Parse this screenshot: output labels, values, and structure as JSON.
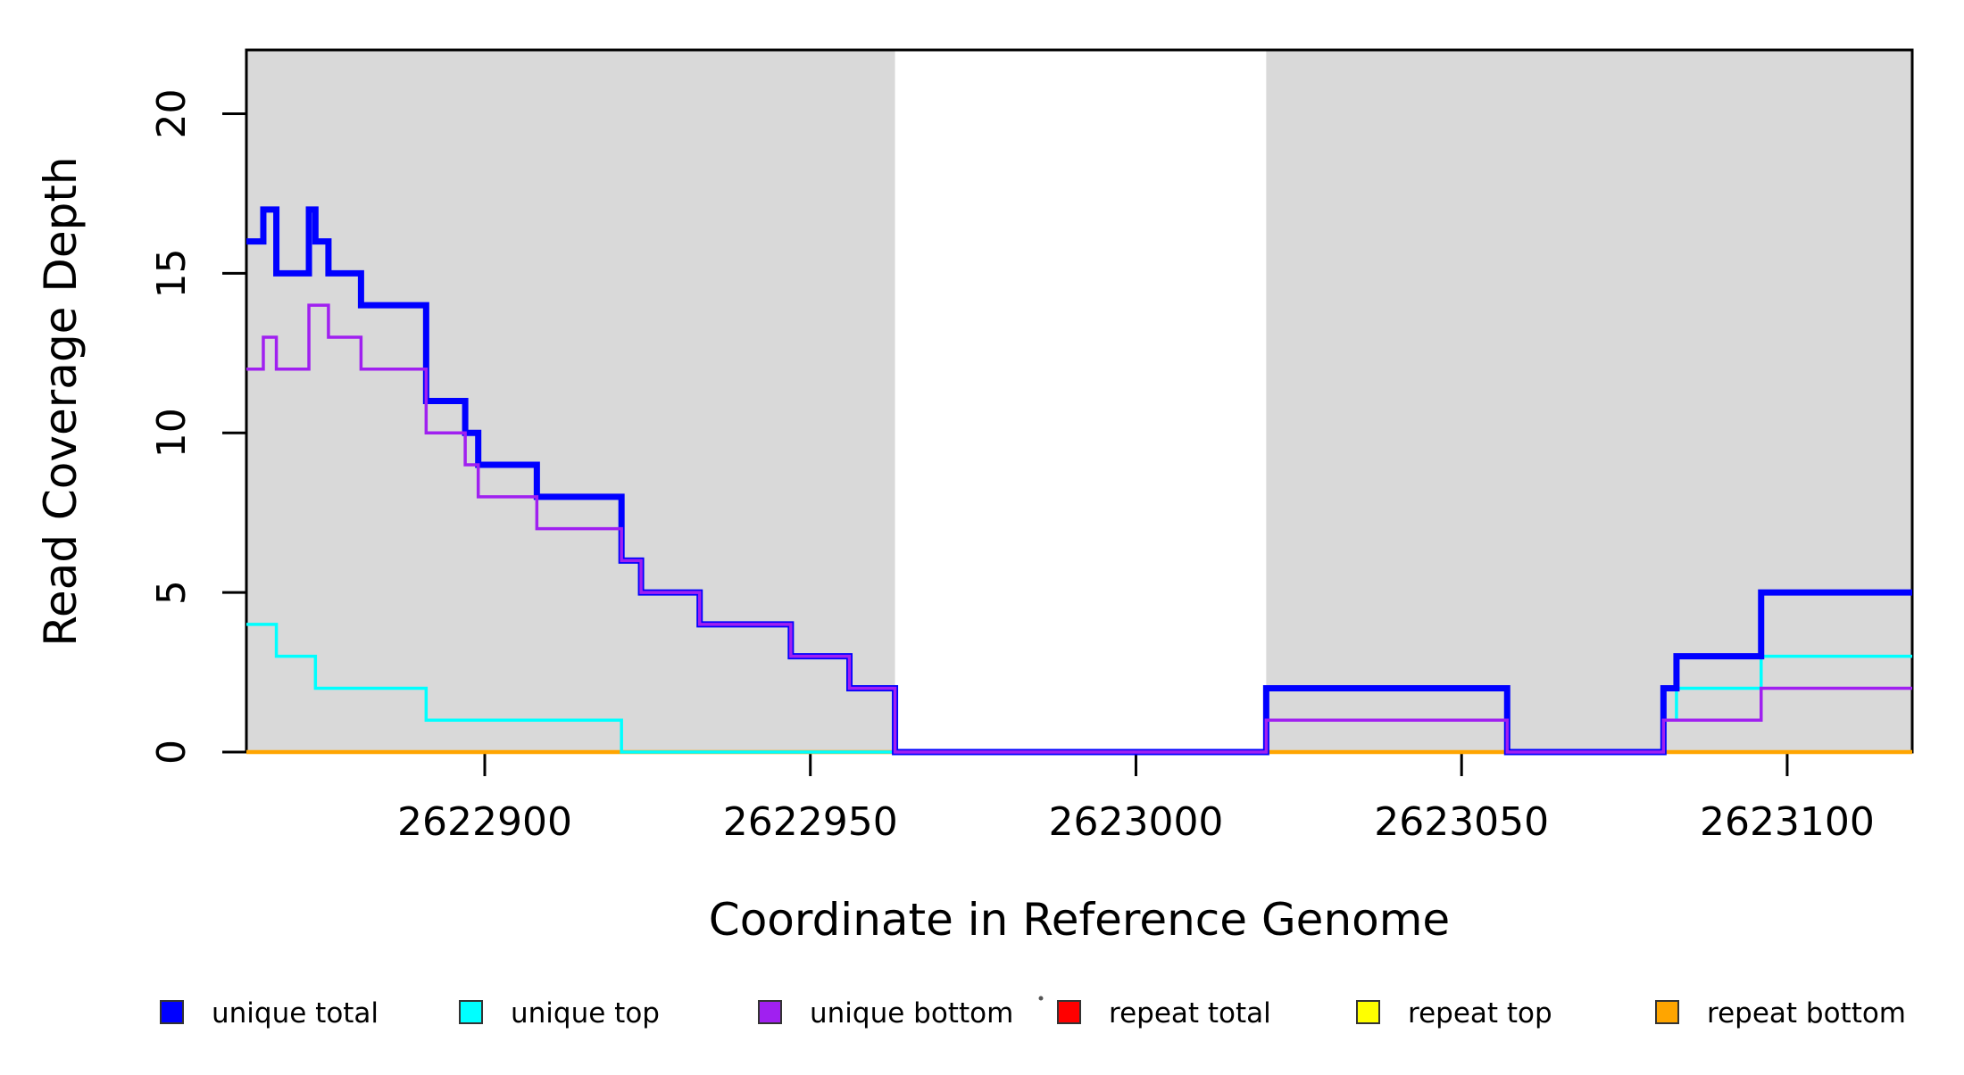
{
  "figure": {
    "background": "#FFFFFF",
    "plot_background": "#FFFFFF",
    "box_color": "#000000"
  },
  "chart_data": {
    "type": "line",
    "subtype": "step",
    "title": "",
    "xlabel": "Coordinate in Reference Genome",
    "ylabel": "Read Coverage Depth",
    "xlim": [
      2622863.4,
      2623119.2
    ],
    "ylim": [
      0,
      22
    ],
    "x_ticks": [
      2622900,
      2622950,
      2623000,
      2623050,
      2623100
    ],
    "y_ticks": [
      0,
      5,
      10,
      15,
      20
    ],
    "grid": "off",
    "shaded_regions": [
      {
        "name": "repeat-region-left",
        "x_start": 2622863.4,
        "x_end": 2622963,
        "color": "#D9D9D9"
      },
      {
        "name": "repeat-region-right",
        "x_start": 2623020,
        "x_end": 2623119.2,
        "color": "#D9D9D9"
      }
    ],
    "series": [
      {
        "name": "repeat total",
        "color": "#FF0000",
        "line_width": 3.5,
        "step_points": [
          [
            2622863.4,
            0
          ]
        ]
      },
      {
        "name": "repeat top",
        "color": "#FFFF00",
        "line_width": 3.5,
        "step_points": [
          [
            2622863.4,
            0
          ]
        ]
      },
      {
        "name": "repeat bottom",
        "color": "#FFA500",
        "line_width": 4.5,
        "step_points": [
          [
            2622863.4,
            0
          ]
        ]
      },
      {
        "name": "unique top",
        "color": "#00FFFF",
        "line_width": 3.5,
        "step_points": [
          [
            2622863.4,
            4
          ],
          [
            2622868,
            3
          ],
          [
            2622874,
            2
          ],
          [
            2622891,
            1
          ],
          [
            2622921,
            0
          ],
          [
            2623020,
            1
          ],
          [
            2623057,
            0
          ],
          [
            2623081,
            1
          ],
          [
            2623083,
            2
          ],
          [
            2623096,
            3
          ]
        ]
      },
      {
        "name": "unique total",
        "color": "#0000FF",
        "line_width": 7,
        "step_points": [
          [
            2622863.4,
            16
          ],
          [
            2622866,
            17
          ],
          [
            2622868,
            15
          ],
          [
            2622873,
            17
          ],
          [
            2622874,
            16
          ],
          [
            2622876,
            15
          ],
          [
            2622881,
            14
          ],
          [
            2622891,
            11
          ],
          [
            2622897,
            10
          ],
          [
            2622899,
            9
          ],
          [
            2622908,
            8
          ],
          [
            2622921,
            6
          ],
          [
            2622924,
            5
          ],
          [
            2622933,
            4
          ],
          [
            2622947,
            3
          ],
          [
            2622956,
            2
          ],
          [
            2622963,
            0
          ],
          [
            2623020,
            2
          ],
          [
            2623057,
            0
          ],
          [
            2623081,
            2
          ],
          [
            2623083,
            3
          ],
          [
            2623096,
            5
          ]
        ]
      },
      {
        "name": "unique bottom",
        "color": "#A020F0",
        "line_width": 3.5,
        "step_points": [
          [
            2622863.4,
            12
          ],
          [
            2622866,
            13
          ],
          [
            2622868,
            12
          ],
          [
            2622873,
            14
          ],
          [
            2622876,
            13
          ],
          [
            2622881,
            12
          ],
          [
            2622891,
            10
          ],
          [
            2622897,
            9
          ],
          [
            2622899,
            8
          ],
          [
            2622908,
            7
          ],
          [
            2622921,
            6
          ],
          [
            2622924,
            5
          ],
          [
            2622933,
            4
          ],
          [
            2622947,
            3
          ],
          [
            2622956,
            2
          ],
          [
            2622963,
            0
          ],
          [
            2623020,
            1
          ],
          [
            2623057,
            0
          ],
          [
            2623081,
            1
          ],
          [
            2623096,
            2
          ]
        ]
      }
    ],
    "legend": {
      "position": "bottom",
      "entries": [
        {
          "label": "unique total",
          "color": "#0000FF"
        },
        {
          "label": "unique top",
          "color": "#00FFFF"
        },
        {
          "label": "unique bottom",
          "color": "#A020F0"
        },
        {
          "label": "repeat total",
          "color": "#FF0000"
        },
        {
          "label": "repeat top",
          "color": "#FFFF00"
        },
        {
          "label": "repeat bottom",
          "color": "#FFA500"
        }
      ]
    }
  }
}
